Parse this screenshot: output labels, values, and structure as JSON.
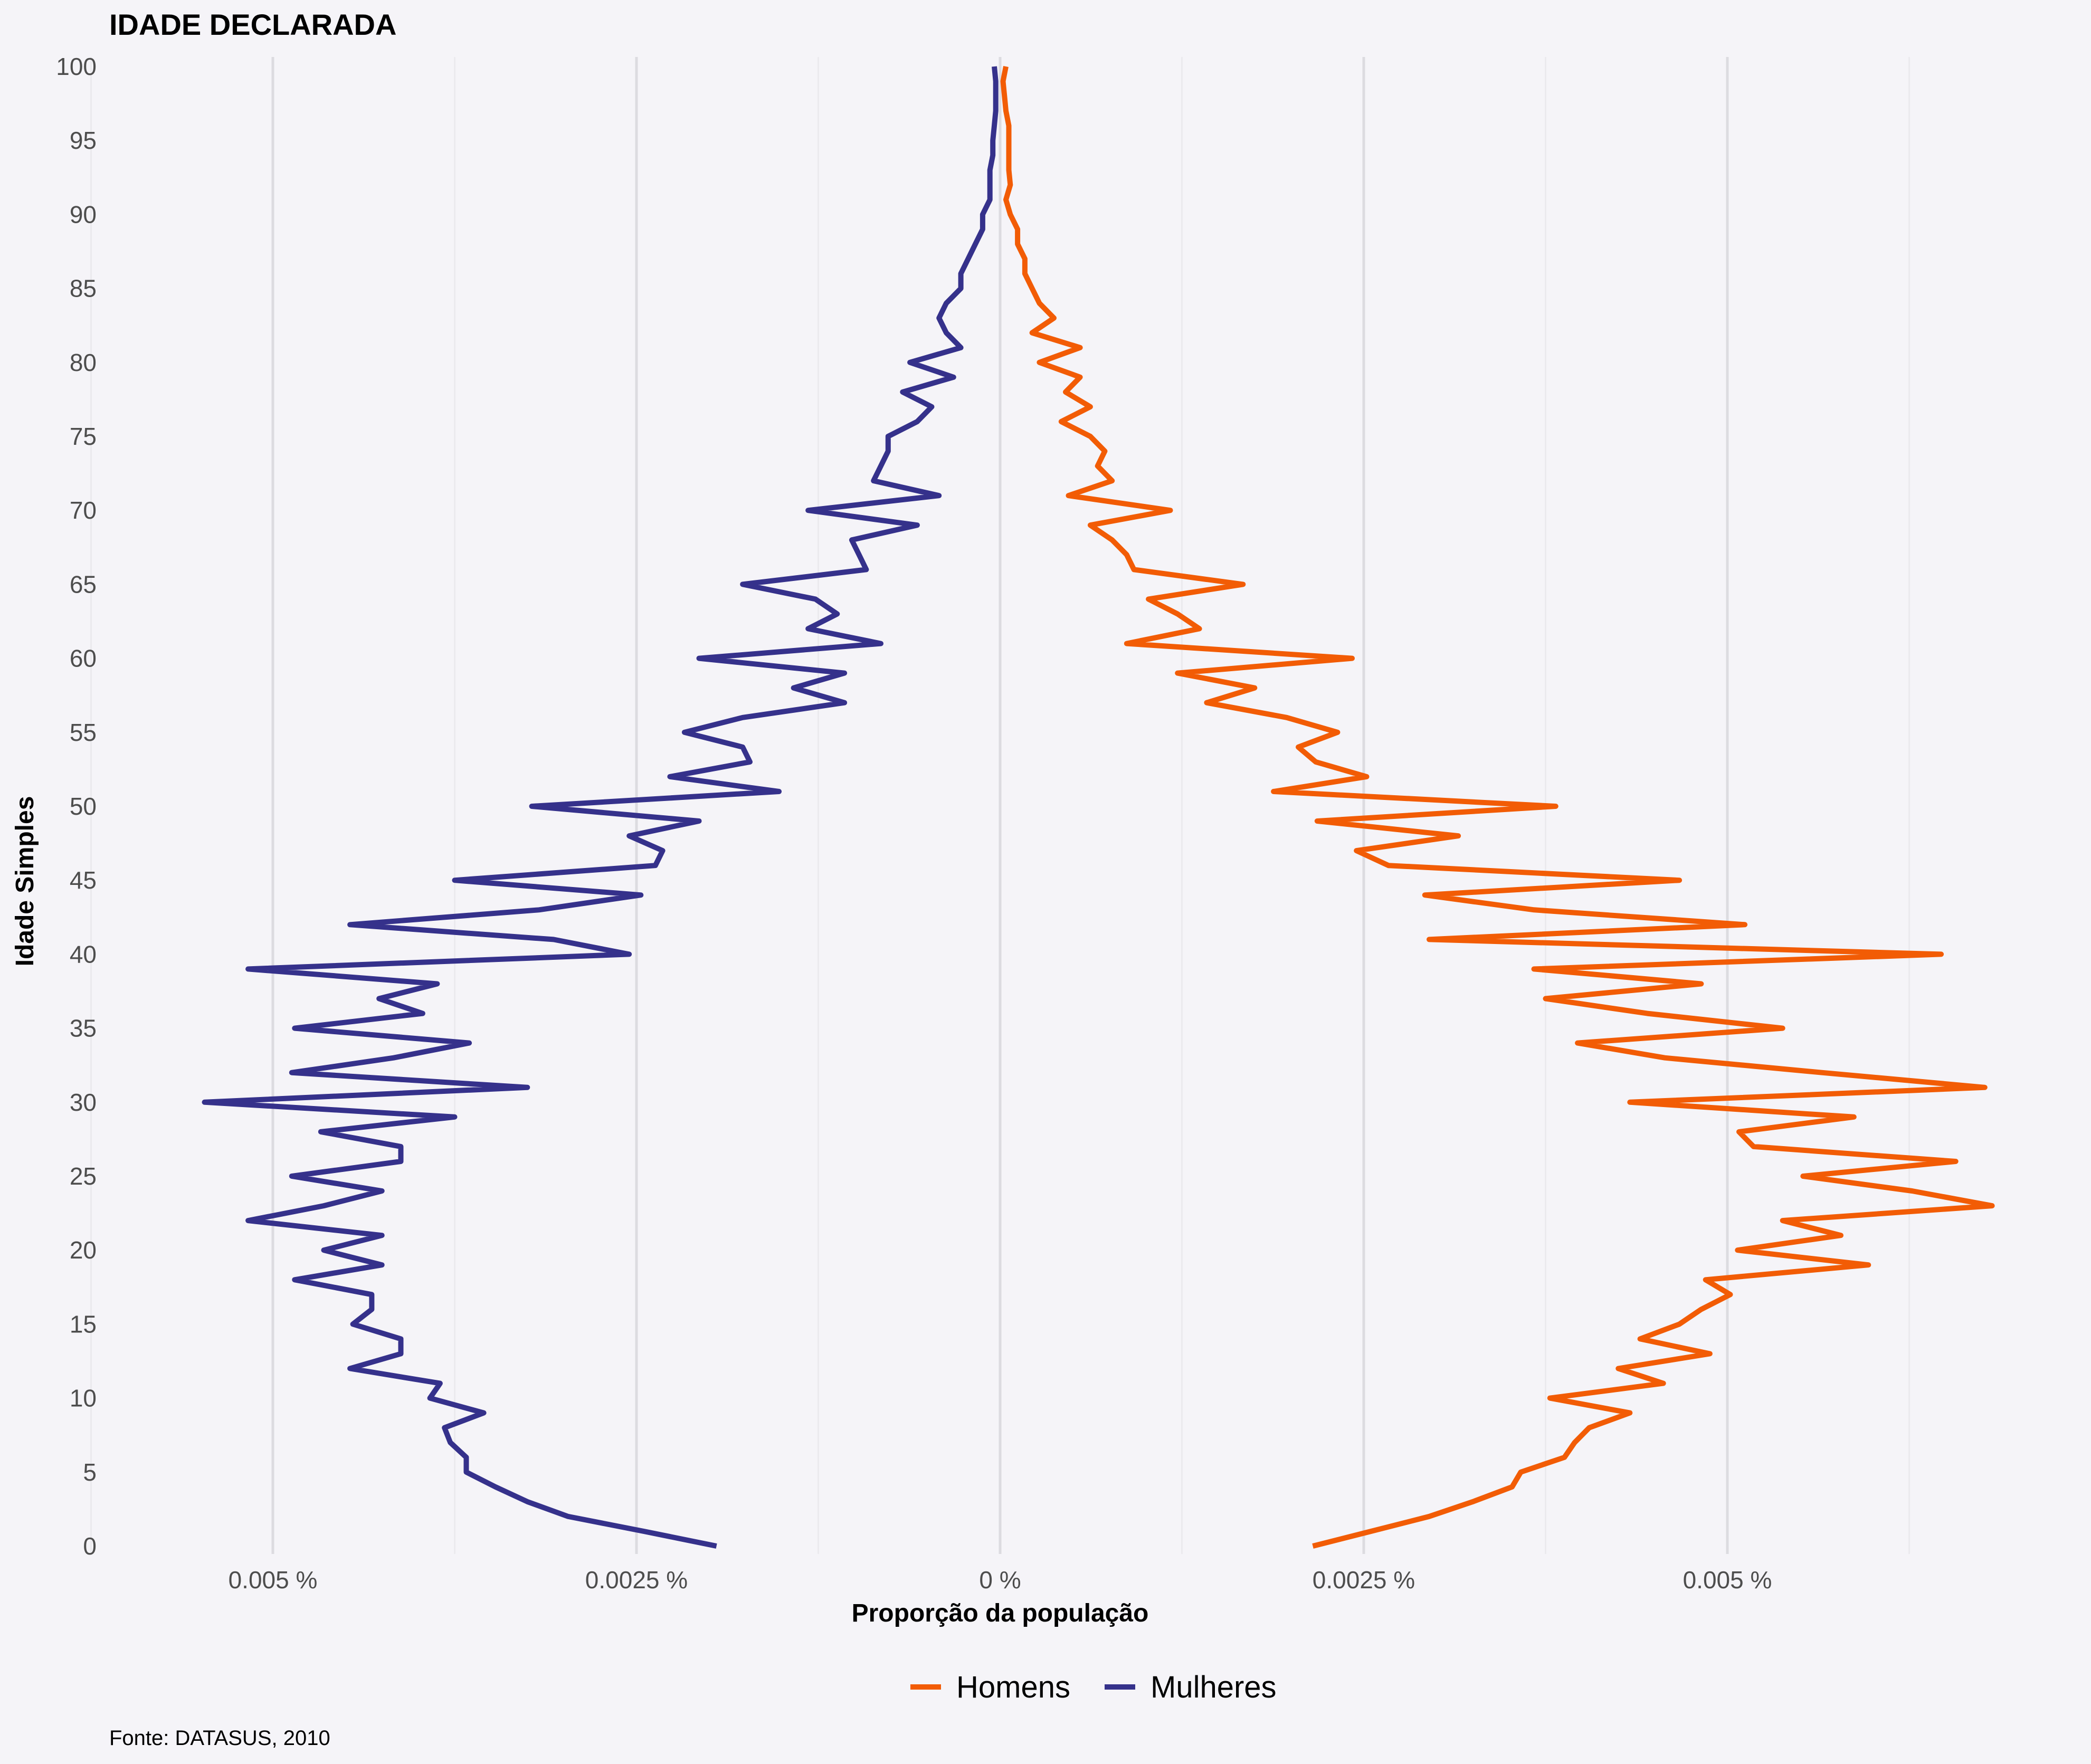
{
  "chart_data": {
    "type": "line",
    "title": "IDADE DECLARADA",
    "xlabel": "Proporção da população",
    "ylabel": "Idade Simples",
    "caption": "Fonte: DATASUS, 2010",
    "x_ticks": [
      {
        "value": -0.005,
        "label": "0.005 %"
      },
      {
        "value": -0.0025,
        "label": "0.0025 %"
      },
      {
        "value": 0,
        "label": "0 %"
      },
      {
        "value": 0.0025,
        "label": "0.0025 %"
      },
      {
        "value": 0.005,
        "label": "0.005 %"
      }
    ],
    "y_ticks": [
      "0",
      "5",
      "10",
      "15",
      "20",
      "25",
      "30",
      "35",
      "40",
      "45",
      "50",
      "55",
      "60",
      "65",
      "70",
      "75",
      "80",
      "85",
      "90",
      "95",
      "100"
    ],
    "xlim": [
      -0.0055,
      0.0069
    ],
    "ylim": [
      0,
      100
    ],
    "grid": true,
    "legend_position": "bottom",
    "ages": [
      0,
      1,
      2,
      3,
      4,
      5,
      6,
      7,
      8,
      9,
      10,
      11,
      12,
      13,
      14,
      15,
      16,
      17,
      18,
      19,
      20,
      21,
      22,
      23,
      24,
      25,
      26,
      27,
      28,
      29,
      30,
      31,
      32,
      33,
      34,
      35,
      36,
      37,
      38,
      39,
      40,
      41,
      42,
      43,
      44,
      45,
      46,
      47,
      48,
      49,
      50,
      51,
      52,
      53,
      54,
      55,
      56,
      57,
      58,
      59,
      60,
      61,
      62,
      63,
      64,
      65,
      66,
      67,
      68,
      69,
      70,
      71,
      72,
      73,
      74,
      75,
      76,
      77,
      78,
      79,
      80,
      81,
      82,
      83,
      84,
      85,
      86,
      87,
      88,
      89,
      90,
      91,
      92,
      93,
      94,
      95,
      96,
      97,
      98,
      99,
      100
    ],
    "series": [
      {
        "name": "Homens",
        "color": "#f25c05",
        "values": [
          0.00215,
          0.00255,
          0.00295,
          0.00325,
          0.00352,
          0.00358,
          0.00388,
          0.00395,
          0.00405,
          0.00433,
          0.00378,
          0.00456,
          0.00425,
          0.00488,
          0.0044,
          0.00467,
          0.00482,
          0.00502,
          0.00485,
          0.00597,
          0.00507,
          0.00578,
          0.00538,
          0.00682,
          0.00627,
          0.00552,
          0.00657,
          0.00518,
          0.00508,
          0.00587,
          0.00433,
          0.00677,
          0.00565,
          0.00457,
          0.00397,
          0.00538,
          0.00445,
          0.00375,
          0.00482,
          0.00367,
          0.00647,
          0.00295,
          0.00512,
          0.00367,
          0.00292,
          0.00467,
          0.00267,
          0.00245,
          0.00315,
          0.00218,
          0.00382,
          0.00188,
          0.00252,
          0.00217,
          0.00205,
          0.00232,
          0.00197,
          0.00142,
          0.00175,
          0.00122,
          0.00242,
          0.00087,
          0.00137,
          0.00122,
          0.00102,
          0.00167,
          0.00092,
          0.00087,
          0.00077,
          0.00062,
          0.00117,
          0.00047,
          0.00077,
          0.00067,
          0.00072,
          0.00062,
          0.00042,
          0.00062,
          0.00045,
          0.00055,
          0.00027,
          0.00055,
          0.00022,
          0.00037,
          0.00027,
          0.00022,
          0.00017,
          0.00017,
          0.00012,
          0.00012,
          7e-05,
          4e-05,
          7e-05,
          6e-05,
          6e-05,
          6e-05,
          6e-05,
          4e-05,
          3e-05,
          2e-05,
          4e-05
        ]
      },
      {
        "name": "Mulheres",
        "color": "#35318b",
        "values": [
          -0.00195,
          -0.00245,
          -0.00297,
          -0.00325,
          -0.00347,
          -0.00367,
          -0.00367,
          -0.00378,
          -0.00382,
          -0.00355,
          -0.00392,
          -0.00385,
          -0.00447,
          -0.00412,
          -0.00412,
          -0.00445,
          -0.00432,
          -0.00432,
          -0.00485,
          -0.00425,
          -0.00465,
          -0.00425,
          -0.00517,
          -0.00465,
          -0.00425,
          -0.00487,
          -0.00412,
          -0.00412,
          -0.00467,
          -0.00375,
          -0.00547,
          -0.00325,
          -0.00487,
          -0.00417,
          -0.00365,
          -0.00485,
          -0.00397,
          -0.00427,
          -0.00387,
          -0.00517,
          -0.00255,
          -0.00307,
          -0.00447,
          -0.00317,
          -0.00247,
          -0.00375,
          -0.00237,
          -0.00232,
          -0.00255,
          -0.00207,
          -0.00322,
          -0.00152,
          -0.00227,
          -0.00172,
          -0.00177,
          -0.00217,
          -0.00177,
          -0.00107,
          -0.00142,
          -0.00107,
          -0.00207,
          -0.00082,
          -0.00132,
          -0.00112,
          -0.00127,
          -0.00177,
          -0.00092,
          -0.00097,
          -0.00102,
          -0.00057,
          -0.00132,
          -0.00042,
          -0.00087,
          -0.00082,
          -0.00077,
          -0.00077,
          -0.00057,
          -0.00047,
          -0.00067,
          -0.00032,
          -0.00062,
          -0.00027,
          -0.00037,
          -0.00042,
          -0.00037,
          -0.00027,
          -0.00027,
          -0.00022,
          -0.00017,
          -0.00012,
          -0.00012,
          -7e-05,
          -7e-05,
          -7e-05,
          -5e-05,
          -5e-05,
          -4e-05,
          -3e-05,
          -3e-05,
          -3e-05,
          -4e-05
        ]
      }
    ]
  }
}
